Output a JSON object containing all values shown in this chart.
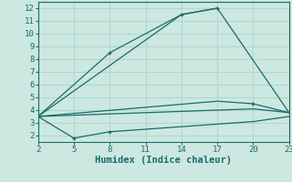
{
  "bg_color": "#cce8e0",
  "grid_color": "#b0d8d0",
  "line_color": "#1a6b6b",
  "xlabel": "Humidex (Indice chaleur)",
  "xlabel_fontsize": 7.5,
  "tick_fontsize": 6.5,
  "xlim": [
    2,
    23
  ],
  "ylim": [
    1.5,
    12.5
  ],
  "xticks": [
    2,
    5,
    8,
    11,
    14,
    17,
    20,
    23
  ],
  "yticks": [
    2,
    3,
    4,
    5,
    6,
    7,
    8,
    9,
    10,
    11,
    12
  ],
  "line1_x": [
    2,
    14,
    17
  ],
  "line1_y": [
    3.5,
    11.5,
    12.0
  ],
  "line2_x": [
    2,
    8,
    14,
    17,
    23
  ],
  "line2_y": [
    3.5,
    8.5,
    11.5,
    12.0,
    3.8
  ],
  "line3_x": [
    2,
    17,
    20,
    23
  ],
  "line3_y": [
    3.5,
    4.7,
    4.5,
    3.8
  ],
  "line4_x": [
    2,
    5,
    8,
    11,
    14,
    17,
    20,
    23
  ],
  "line4_y": [
    3.5,
    3.6,
    3.7,
    3.8,
    3.9,
    4.0,
    4.1,
    3.8
  ],
  "line5_x": [
    2,
    5,
    8,
    11,
    14,
    17,
    20,
    23
  ],
  "line5_y": [
    3.5,
    1.8,
    2.3,
    2.5,
    2.7,
    2.9,
    3.1,
    3.5
  ],
  "marker_pts_x": [
    8,
    14,
    17,
    20,
    5,
    8
  ],
  "marker_pts_y": [
    8.5,
    11.5,
    12.0,
    4.5,
    1.8,
    2.3
  ]
}
